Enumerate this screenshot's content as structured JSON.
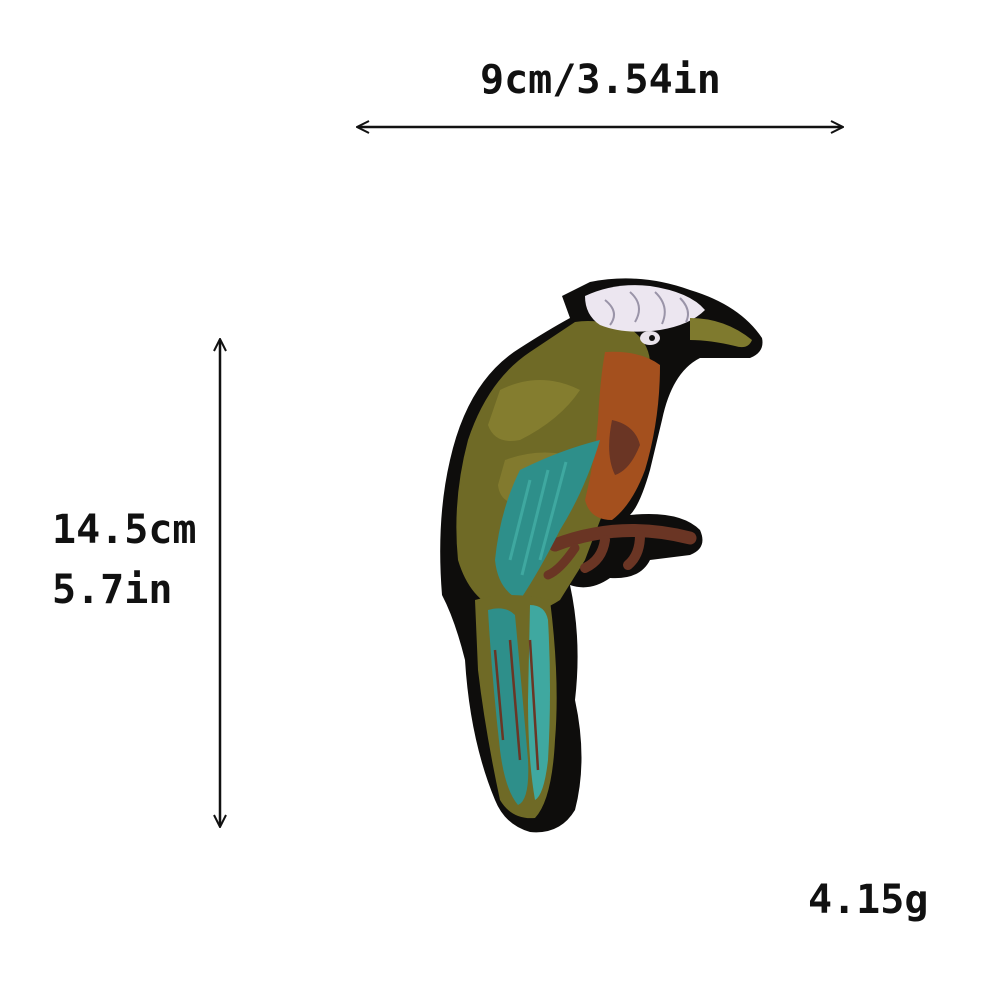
{
  "dimensions": {
    "width": "9cm/3.54in",
    "height_cm": "14.5cm",
    "height_in": "5.7in",
    "weight": "4.15g"
  },
  "product": {
    "type": "embroidered bird patch",
    "colors": {
      "border": "#0e0d0c",
      "olive": "#6f6a26",
      "olive_light": "#8a8232",
      "rust": "#a4501e",
      "brown": "#6a3524",
      "teal": "#2e8f8a",
      "teal_light": "#3fa8a0",
      "white_crest": "#ece6f0",
      "beak": "#7f7a2e"
    }
  }
}
